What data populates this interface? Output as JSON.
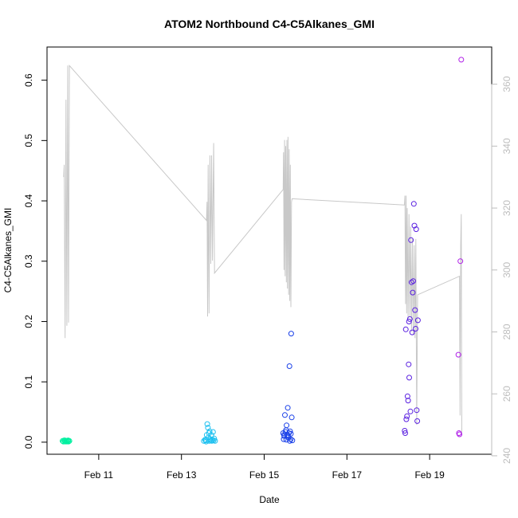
{
  "chart_data": {
    "type": "scatter",
    "title": "ATOM2 Northbound C4-C5Alkanes_GMI",
    "xlabel": "Date",
    "ylabel": "C4-C5Alkanes_GMI",
    "xlim": [
      "2016-02-09T18:00",
      "2016-02-20T12:00"
    ],
    "ylim": [
      -0.02,
      0.655
    ],
    "y2lim": [
      240.5,
      372
    ],
    "x_ticks": [
      {
        "label": "Feb 11",
        "x": "2016-02-11T00:00"
      },
      {
        "label": "Feb 13",
        "x": "2016-02-13T00:00"
      },
      {
        "label": "Feb 15",
        "x": "2016-02-15T00:00"
      },
      {
        "label": "Feb 17",
        "x": "2016-02-17T00:00"
      },
      {
        "label": "Feb 19",
        "x": "2016-02-19T00:00"
      }
    ],
    "y_ticks": [
      "0.0",
      "0.1",
      "0.2",
      "0.3",
      "0.4",
      "0.5",
      "0.6"
    ],
    "y2_ticks": [
      "240",
      "260",
      "280",
      "300",
      "320",
      "340",
      "360"
    ],
    "grid": false,
    "legend": "none",
    "secondary_line": {
      "color": "#c8c8c8",
      "points": [
        [
          "2016-02-10T03:40",
          330.0
        ],
        [
          "2016-02-10T04:00",
          334.0
        ],
        [
          "2016-02-10T04:30",
          278.0
        ],
        [
          "2016-02-10T05:00",
          355.0
        ],
        [
          "2016-02-10T05:30",
          282.0
        ],
        [
          "2016-02-10T06:00",
          366.0
        ],
        [
          "2016-02-10T06:30",
          283.0
        ],
        [
          "2016-02-10T07:00",
          366.0
        ],
        [
          "2016-02-13T14:30",
          316.0
        ],
        [
          "2016-02-13T14:50",
          322.0
        ],
        [
          "2016-02-13T15:10",
          285.0
        ],
        [
          "2016-02-13T15:30",
          334.0
        ],
        [
          "2016-02-13T16:00",
          286.0
        ],
        [
          "2016-02-13T16:30",
          337.0
        ],
        [
          "2016-02-13T17:00",
          302.0
        ],
        [
          "2016-02-13T17:30",
          337.0
        ],
        [
          "2016-02-13T18:00",
          303.0
        ],
        [
          "2016-02-13T18:40",
          341.0
        ],
        [
          "2016-02-13T19:10",
          299.0
        ],
        [
          "2016-02-15T11:00",
          326.0
        ],
        [
          "2016-02-15T11:15",
          338.0
        ],
        [
          "2016-02-15T11:30",
          300.0
        ],
        [
          "2016-02-15T11:50",
          342.0
        ],
        [
          "2016-02-15T12:10",
          298.0
        ],
        [
          "2016-02-15T12:30",
          340.0
        ],
        [
          "2016-02-15T12:50",
          296.0
        ],
        [
          "2016-02-15T13:10",
          342.0
        ],
        [
          "2016-02-15T13:30",
          294.0
        ],
        [
          "2016-02-15T13:50",
          343.0
        ],
        [
          "2016-02-15T14:10",
          292.0
        ],
        [
          "2016-02-15T14:30",
          339.0
        ],
        [
          "2016-02-15T14:50",
          290.0
        ],
        [
          "2016-02-15T15:10",
          334.0
        ],
        [
          "2016-02-15T15:30",
          288.0
        ],
        [
          "2016-02-15T15:50",
          322.0
        ],
        [
          "2016-02-15T16:10",
          323.0
        ],
        [
          "2016-02-18T09:20",
          321.0
        ],
        [
          "2016-02-18T09:40",
          324.0
        ],
        [
          "2016-02-18T10:00",
          289.0
        ],
        [
          "2016-02-18T10:20",
          324.0
        ],
        [
          "2016-02-18T10:40",
          286.0
        ],
        [
          "2016-02-18T11:00",
          320.0
        ],
        [
          "2016-02-18T11:30",
          284.0
        ],
        [
          "2016-02-18T12:00",
          318.0
        ],
        [
          "2016-02-18T12:30",
          285.0
        ],
        [
          "2016-02-18T13:00",
          314.0
        ],
        [
          "2016-02-18T13:30",
          280.0
        ],
        [
          "2016-02-18T14:00",
          310.0
        ],
        [
          "2016-02-18T14:30",
          279.0
        ],
        [
          "2016-02-18T15:00",
          308.0
        ],
        [
          "2016-02-18T15:30",
          278.0
        ],
        [
          "2016-02-18T16:00",
          310.0
        ],
        [
          "2016-02-18T16:30",
          250.0
        ],
        [
          "2016-02-18T17:00",
          292.0
        ],
        [
          "2016-02-19T17:20",
          298.0
        ],
        [
          "2016-02-19T17:40",
          253.0
        ],
        [
          "2016-02-19T18:00",
          308.0
        ],
        [
          "2016-02-19T18:20",
          318.0
        ],
        [
          "2016-02-19T18:40",
          247.0
        ]
      ]
    },
    "series": [
      {
        "color": "#00f0a0",
        "points": [
          [
            "2016-02-10T03:00",
            0.002
          ],
          [
            "2016-02-10T03:30",
            0.001
          ],
          [
            "2016-02-10T04:00",
            0.003
          ],
          [
            "2016-02-10T04:30",
            0.001
          ],
          [
            "2016-02-10T05:00",
            0.002
          ],
          [
            "2016-02-10T05:30",
            0.001
          ],
          [
            "2016-02-10T06:00",
            0.002
          ],
          [
            "2016-02-10T06:30",
            0.001
          ],
          [
            "2016-02-10T07:00",
            0.002
          ],
          [
            "2016-02-10T04:15",
            0.003
          ],
          [
            "2016-02-10T05:15",
            0.002
          ],
          [
            "2016-02-10T06:15",
            0.003
          ]
        ]
      },
      {
        "color": "#1cc0f0",
        "points": [
          [
            "2016-02-13T13:00",
            0.002
          ],
          [
            "2016-02-13T13:40",
            0.004
          ],
          [
            "2016-02-13T14:10",
            0.003
          ],
          [
            "2016-02-13T14:40",
            0.012
          ],
          [
            "2016-02-13T15:00",
            0.03
          ],
          [
            "2016-02-13T15:20",
            0.024
          ],
          [
            "2016-02-13T15:40",
            0.008
          ],
          [
            "2016-02-13T16:00",
            0.015
          ],
          [
            "2016-02-13T16:20",
            0.018
          ],
          [
            "2016-02-13T16:40",
            0.005
          ],
          [
            "2016-02-13T17:00",
            0.003
          ],
          [
            "2016-02-13T17:20",
            0.012
          ],
          [
            "2016-02-13T17:40",
            0.002
          ],
          [
            "2016-02-13T18:00",
            0.004
          ],
          [
            "2016-02-13T18:20",
            0.017
          ],
          [
            "2016-02-13T18:40",
            0.003
          ],
          [
            "2016-02-13T19:00",
            0.006
          ],
          [
            "2016-02-13T19:30",
            0.002
          ],
          [
            "2016-02-13T16:10",
            0.002
          ],
          [
            "2016-02-13T14:20",
            0.001
          ]
        ]
      },
      {
        "color": "#1a40e8",
        "points": [
          [
            "2016-02-15T11:00",
            0.015
          ],
          [
            "2016-02-15T11:20",
            0.005
          ],
          [
            "2016-02-15T11:40",
            0.01
          ],
          [
            "2016-02-15T12:00",
            0.045
          ],
          [
            "2016-02-15T12:20",
            0.017
          ],
          [
            "2016-02-15T12:40",
            0.02
          ],
          [
            "2016-02-15T13:00",
            0.028
          ],
          [
            "2016-02-15T13:20",
            0.012
          ],
          [
            "2016-02-15T13:40",
            0.057
          ],
          [
            "2016-02-15T14:00",
            0.008
          ],
          [
            "2016-02-15T14:20",
            0.015
          ],
          [
            "2016-02-15T14:40",
            0.126
          ],
          [
            "2016-02-15T15:00",
            0.018
          ],
          [
            "2016-02-15T15:20",
            0.005
          ],
          [
            "2016-02-15T15:40",
            0.18
          ],
          [
            "2016-02-15T16:00",
            0.041
          ],
          [
            "2016-02-15T16:20",
            0.003
          ],
          [
            "2016-02-15T11:30",
            0.012
          ],
          [
            "2016-02-15T12:50",
            0.004
          ],
          [
            "2016-02-15T13:50",
            0.01
          ],
          [
            "2016-02-15T14:50",
            0.002
          ],
          [
            "2016-02-15T15:30",
            0.014
          ]
        ]
      },
      {
        "color": "#5a20e0",
        "points": [
          [
            "2016-02-18T09:30",
            0.019
          ],
          [
            "2016-02-18T09:50",
            0.015
          ],
          [
            "2016-02-18T10:10",
            0.187
          ],
          [
            "2016-02-18T10:30",
            0.038
          ],
          [
            "2016-02-18T10:50",
            0.043
          ],
          [
            "2016-02-18T11:10",
            0.076
          ],
          [
            "2016-02-18T11:30",
            0.069
          ],
          [
            "2016-02-18T11:50",
            0.129
          ],
          [
            "2016-02-18T12:10",
            0.107
          ],
          [
            "2016-02-18T12:30",
            0.204
          ],
          [
            "2016-02-18T12:50",
            0.051
          ],
          [
            "2016-02-18T13:10",
            0.335
          ],
          [
            "2016-02-18T13:30",
            0.265
          ],
          [
            "2016-02-18T13:50",
            0.182
          ],
          [
            "2016-02-18T14:10",
            0.248
          ],
          [
            "2016-02-18T14:30",
            0.267
          ],
          [
            "2016-02-18T14:50",
            0.395
          ],
          [
            "2016-02-18T15:10",
            0.359
          ],
          [
            "2016-02-18T15:30",
            0.219
          ],
          [
            "2016-02-18T15:50",
            0.188
          ],
          [
            "2016-02-18T16:10",
            0.353
          ],
          [
            "2016-02-18T16:30",
            0.053
          ],
          [
            "2016-02-18T16:50",
            0.035
          ],
          [
            "2016-02-18T17:10",
            0.202
          ],
          [
            "2016-02-18T12:00",
            0.2
          ]
        ]
      },
      {
        "color": "#b020e8",
        "points": [
          [
            "2016-02-19T16:40",
            0.145
          ],
          [
            "2016-02-19T17:00",
            0.015
          ],
          [
            "2016-02-19T17:20",
            0.013
          ],
          [
            "2016-02-19T17:50",
            0.3
          ],
          [
            "2016-02-19T18:20",
            0.634
          ]
        ]
      }
    ]
  }
}
